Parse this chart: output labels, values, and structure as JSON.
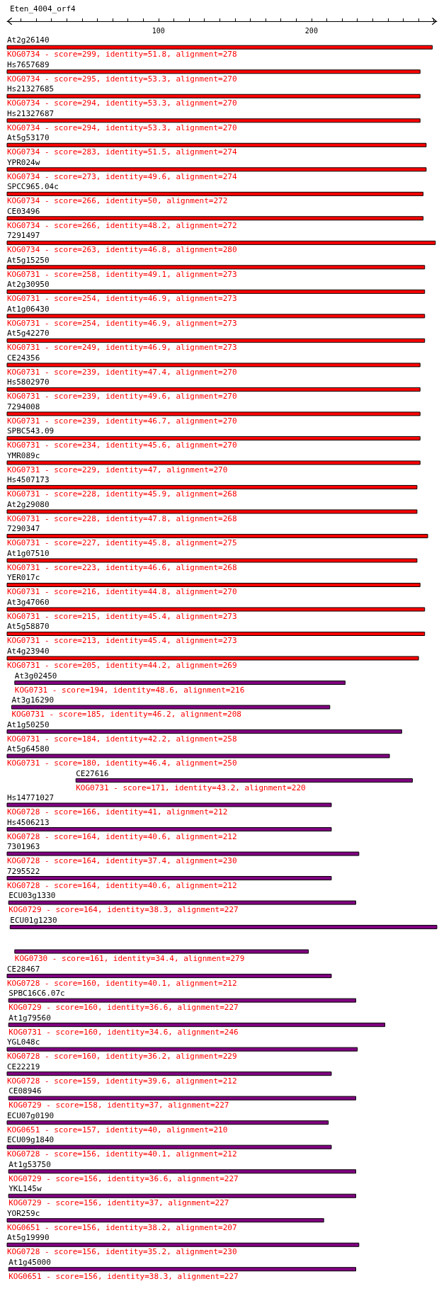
{
  "chart_data": {
    "type": "bar",
    "orientation": "horizontal",
    "title": "Eten_4004_orf4",
    "categories": [
      "At2g26140",
      "Hs7657689",
      "Hs21327685",
      "Hs21327687",
      "At5g53170",
      "YPR024w",
      "SPCC965.04c",
      "CE03496",
      "7291497",
      "At5g15250",
      "At2g30950",
      "At1g06430",
      "At5g42270",
      "CE24356",
      "Hs5802970",
      "7294008",
      "SPBC543.09",
      "YMR089c",
      "Hs4507173",
      "At2g29080",
      "7290347",
      "At1g07510",
      "YER017c",
      "At3g47060",
      "At5g58870",
      "At4g23940",
      "At3g02450",
      "At3g16290",
      "At1g50250",
      "At5g64580",
      "CE27616",
      "Hs14771027",
      "Hs4506213",
      "7301963",
      "7295522",
      "ECU03g1330",
      "ECU01g1230",
      null,
      "CE28467",
      "SPBC16C6.07c",
      "At1g79560",
      "YGL048c",
      "CE22219",
      "CE08946",
      "ECU07g0190",
      "ECU09g1840",
      "At1g53750",
      "YKL145w",
      "YOR259c",
      "At5g19990",
      "At1g45000"
    ],
    "base": [
      1,
      1,
      1,
      1,
      1,
      1,
      1,
      1,
      1,
      1,
      1,
      1,
      1,
      1,
      1,
      1,
      1,
      1,
      1,
      1,
      1,
      1,
      1,
      1,
      1,
      1,
      6,
      4,
      1,
      1,
      46,
      1,
      1,
      1,
      1,
      2,
      3,
      6,
      1,
      2,
      2,
      1,
      1,
      2,
      1,
      1,
      2,
      2,
      1,
      1,
      2
    ],
    "values": [
      278,
      270,
      270,
      270,
      274,
      274,
      272,
      272,
      280,
      273,
      273,
      273,
      273,
      270,
      270,
      270,
      270,
      270,
      268,
      268,
      275,
      268,
      270,
      273,
      273,
      269,
      216,
      208,
      258,
      250,
      220,
      212,
      212,
      230,
      212,
      227,
      279,
      192,
      212,
      227,
      246,
      229,
      212,
      227,
      210,
      212,
      227,
      227,
      207,
      230,
      227
    ],
    "colors": [
      "#ff0000",
      "#ff0000",
      "#ff0000",
      "#ff0000",
      "#ff0000",
      "#ff0000",
      "#ff0000",
      "#ff0000",
      "#ff0000",
      "#ff0000",
      "#ff0000",
      "#ff0000",
      "#ff0000",
      "#ff0000",
      "#ff0000",
      "#ff0000",
      "#ff0000",
      "#ff0000",
      "#ff0000",
      "#ff0000",
      "#ff0000",
      "#ff0000",
      "#ff0000",
      "#ff0000",
      "#ff0000",
      "#ff0000",
      "#800080",
      "#800080",
      "#800080",
      "#800080",
      "#800080",
      "#800080",
      "#800080",
      "#800080",
      "#800080",
      "#800080",
      "#800080",
      "#800080",
      "#800080",
      "#800080",
      "#800080",
      "#800080",
      "#800080",
      "#800080",
      "#800080",
      "#800080",
      "#800080",
      "#800080",
      "#800080",
      "#800080",
      "#800080"
    ],
    "value_labels": [
      "KOG0734 - score=299, identity=51.8, alignment=278",
      "KOG0734 - score=295, identity=53.3, alignment=270",
      "KOG0734 - score=294, identity=53.3, alignment=270",
      "KOG0734 - score=294, identity=53.3, alignment=270",
      "KOG0734 - score=283, identity=51.5, alignment=274",
      "KOG0734 - score=273, identity=49.6, alignment=274",
      "KOG0734 - score=266, identity=50, alignment=272",
      "KOG0734 - score=266, identity=48.2, alignment=272",
      "KOG0734 - score=263, identity=46.8, alignment=280",
      "KOG0731 - score=258, identity=49.1, alignment=273",
      "KOG0731 - score=254, identity=46.9, alignment=273",
      "KOG0731 - score=254, identity=46.9, alignment=273",
      "KOG0731 - score=249, identity=46.9, alignment=273",
      "KOG0731 - score=239, identity=47.4, alignment=270",
      "KOG0731 - score=239, identity=49.6, alignment=270",
      "KOG0731 - score=239, identity=46.7, alignment=270",
      "KOG0731 - score=234, identity=45.6, alignment=270",
      "KOG0731 - score=229, identity=47, alignment=270",
      "KOG0731 - score=228, identity=45.9, alignment=268",
      "KOG0731 - score=228, identity=47.8, alignment=268",
      "KOG0731 - score=227, identity=45.8, alignment=275",
      "KOG0731 - score=223, identity=46.6, alignment=268",
      "KOG0731 - score=216, identity=44.8, alignment=270",
      "KOG0731 - score=215, identity=45.4, alignment=273",
      "KOG0731 - score=213, identity=45.4, alignment=273",
      "KOG0731 - score=205, identity=44.2, alignment=269",
      "KOG0731 - score=194, identity=48.6, alignment=216",
      "KOG0731 - score=185, identity=46.2, alignment=208",
      "KOG0731 - score=184, identity=42.2, alignment=258",
      "KOG0731 - score=180, identity=46.4, alignment=250",
      "KOG0731 - score=171, identity=43.2, alignment=220",
      "KOG0728 - score=166, identity=41, alignment=212",
      "KOG0728 - score=164, identity=40.6, alignment=212",
      "KOG0728 - score=164, identity=37.4, alignment=230",
      "KOG0728 - score=164, identity=40.6, alignment=212",
      "KOG0729 - score=164, identity=38.3, alignment=227",
      null,
      "KOG0730 - score=161, identity=34.4, alignment=279",
      "KOG0728 - score=160, identity=40.1, alignment=212",
      "KOG0729 - score=160, identity=36.6, alignment=227",
      "KOG0731 - score=160, identity=34.6, alignment=246",
      "KOG0728 - score=160, identity=36.2, alignment=229",
      "KOG0728 - score=159, identity=39.6, alignment=212",
      "KOG0729 - score=158, identity=37, alignment=227",
      "KOG0651 - score=157, identity=40, alignment=210",
      "KOG0728 - score=156, identity=40.1, alignment=212",
      "KOG0729 - score=156, identity=36.6, alignment=227",
      "KOG0729 - score=156, identity=37, alignment=227",
      "KOG0651 - score=156, identity=38.2, alignment=207",
      "KOG0728 - score=156, identity=35.2, alignment=230",
      "KOG0651 - score=156, identity=38.3, alignment=227"
    ],
    "xlim": [
      1,
      282
    ],
    "xticks": [
      {
        "value": 10,
        "label": null
      },
      {
        "value": 20,
        "label": null
      },
      {
        "value": 30,
        "label": null
      },
      {
        "value": 40,
        "label": null
      },
      {
        "value": 50,
        "label": null
      },
      {
        "value": 60,
        "label": null
      },
      {
        "value": 70,
        "label": null
      },
      {
        "value": 80,
        "label": null
      },
      {
        "value": 90,
        "label": null
      },
      100,
      {
        "value": 110,
        "label": null
      },
      {
        "value": 120,
        "label": null
      },
      {
        "value": 130,
        "label": null
      },
      {
        "value": 140,
        "label": null
      },
      {
        "value": 150,
        "label": null
      },
      {
        "value": 160,
        "label": null
      },
      {
        "value": 170,
        "label": null
      },
      {
        "value": 180,
        "label": null
      },
      {
        "value": 190,
        "label": null
      },
      200,
      {
        "value": 210,
        "label": null
      },
      {
        "value": 220,
        "label": null
      },
      {
        "value": 230,
        "label": null
      },
      {
        "value": 240,
        "label": null
      },
      {
        "value": 250,
        "label": null
      },
      {
        "value": 260,
        "label": null
      },
      {
        "value": 270,
        "label": null
      },
      {
        "value": 280,
        "label": null
      }
    ]
  }
}
